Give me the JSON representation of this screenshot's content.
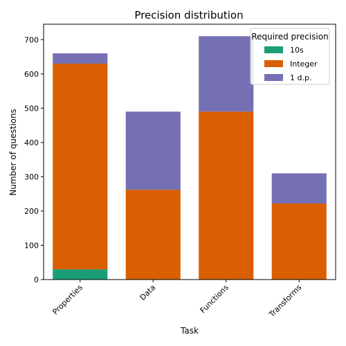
{
  "chart_data": {
    "type": "bar",
    "stacked": true,
    "title": "Precision distribution",
    "xlabel": "Task",
    "ylabel": "Number of questions",
    "categories": [
      "Properties",
      "Data",
      "Functions",
      "Transforms"
    ],
    "series": [
      {
        "name": "10s",
        "color": "#1b9e77",
        "values": [
          30,
          0,
          0,
          0
        ]
      },
      {
        "name": "Integer",
        "color": "#d95f02",
        "values": [
          600,
          262,
          490,
          222
        ]
      },
      {
        "name": "1 d.p.",
        "color": "#7570b3",
        "values": [
          30,
          228,
          220,
          88
        ]
      }
    ],
    "ylim": [
      0,
      745
    ],
    "yticks": [
      0,
      100,
      200,
      300,
      400,
      500,
      600,
      700
    ],
    "grid": false,
    "legend": {
      "title": "Required precision",
      "position": "top-right"
    }
  }
}
